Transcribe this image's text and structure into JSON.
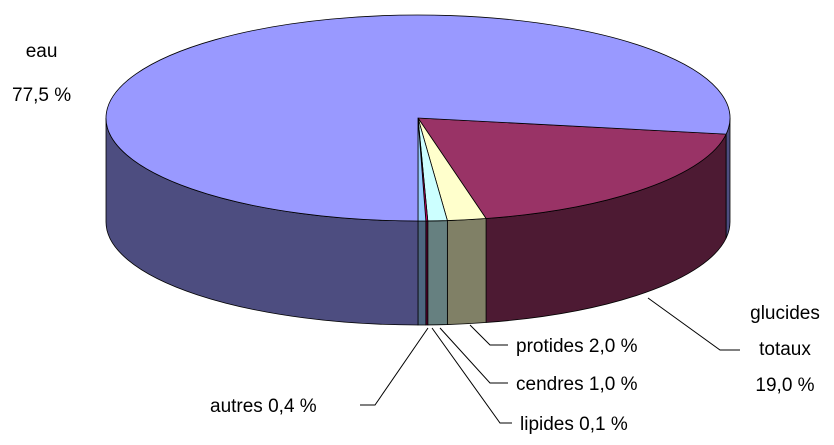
{
  "chart_data": {
    "type": "pie",
    "categories": [
      "glucides totaux",
      "protides",
      "cendres",
      "lipides",
      "autres",
      "eau"
    ],
    "values": [
      19.0,
      2.0,
      1.0,
      0.1,
      0.4,
      77.5
    ],
    "value_labels": [
      "19,0 %",
      "2,0 %",
      "1,0 %",
      "0,1 %",
      "0,4 %",
      "77,5 %"
    ],
    "colors": [
      "#993366",
      "#ffffcc",
      "#ccffff",
      "#cc0066",
      "#99ccff",
      "#9999ff"
    ]
  }
}
